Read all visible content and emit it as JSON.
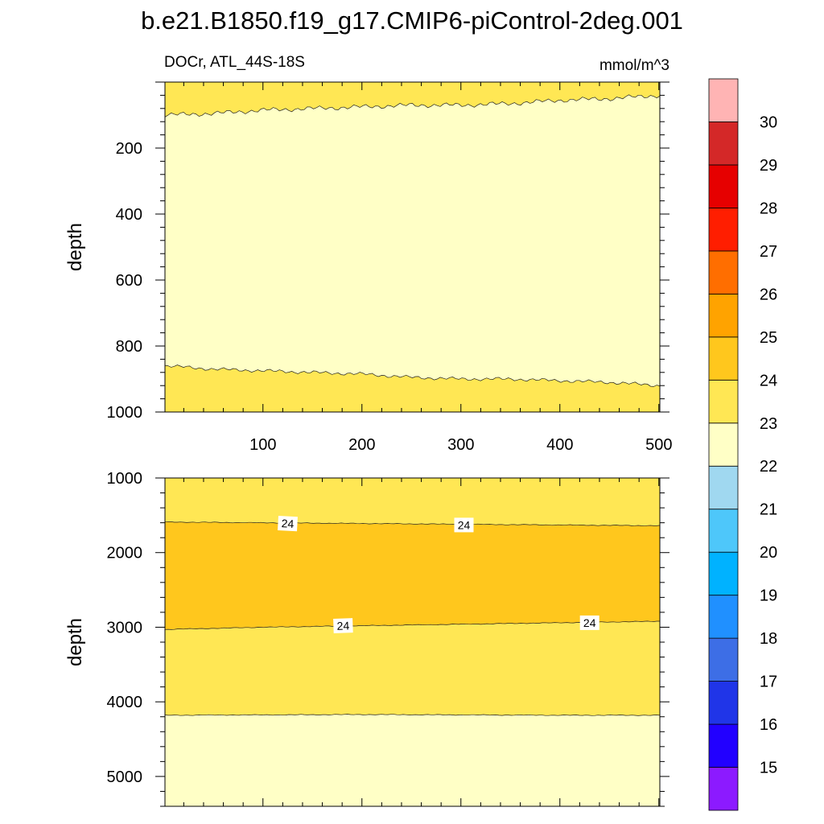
{
  "figure": {
    "title": "b.e21.B1850.f19_g17.CMIP6-piControl-2deg.001",
    "left_string": "DOCr, ATL_44S-18S",
    "right_string": "mmol/m^3"
  },
  "chart_data": [
    {
      "type": "contour",
      "panel": "upper",
      "ylabel": "depth",
      "xlabel": "",
      "xlim": [
        1,
        501
      ],
      "ylim": [
        0,
        1000
      ],
      "y_reversed": true,
      "x_ticks": [
        "100",
        "200",
        "300",
        "400",
        "500"
      ],
      "y_ticks": [
        "200",
        "400",
        "600",
        "800",
        "1000"
      ],
      "bands": [
        {
          "range": "23-24",
          "color": "#ffe754",
          "from_depth": 0,
          "to_depth": "upper contour"
        },
        {
          "range": "22-23",
          "color": "#ffffc6",
          "from_depth": "upper contour",
          "to_depth": "lower contour"
        },
        {
          "range": "23-24",
          "color": "#ffe754",
          "from_depth": "lower contour",
          "to_depth": 1000
        }
      ],
      "contours": [
        {
          "level": 23,
          "x": [
            1,
            50,
            100,
            150,
            200,
            250,
            300,
            350,
            400,
            450,
            501
          ],
          "depth": [
            100,
            95,
            85,
            80,
            75,
            70,
            70,
            65,
            55,
            50,
            40
          ]
        },
        {
          "level": 23,
          "x": [
            1,
            50,
            100,
            150,
            200,
            250,
            300,
            350,
            400,
            450,
            501
          ],
          "depth": [
            860,
            870,
            875,
            880,
            885,
            895,
            900,
            900,
            905,
            910,
            920
          ]
        }
      ]
    },
    {
      "type": "contour",
      "panel": "lower",
      "ylabel": "depth",
      "xlabel": "",
      "xlim": [
        1,
        501
      ],
      "ylim": [
        1000,
        5400
      ],
      "y_reversed": true,
      "y_ticks": [
        "1000",
        "2000",
        "3000",
        "4000",
        "5000"
      ],
      "bands": [
        {
          "range": "23-24",
          "color": "#ffe754"
        },
        {
          "range": "24-25",
          "color": "#ffc71d"
        },
        {
          "range": "23-24",
          "color": "#ffe754"
        },
        {
          "range": "22-23",
          "color": "#ffffc6"
        }
      ],
      "contours": [
        {
          "level": 24,
          "x": [
            1,
            100,
            200,
            300,
            400,
            501
          ],
          "depth": [
            1590,
            1600,
            1610,
            1620,
            1630,
            1640
          ]
        },
        {
          "level": 24,
          "x": [
            1,
            100,
            200,
            300,
            400,
            501
          ],
          "depth": [
            3030,
            3000,
            2980,
            2960,
            2940,
            2920
          ]
        },
        {
          "level": 23,
          "x": [
            1,
            100,
            200,
            300,
            400,
            501
          ],
          "depth": [
            4180,
            4175,
            4170,
            4175,
            4180,
            4180
          ]
        }
      ],
      "contour_labels": [
        {
          "text": "24",
          "x": 125,
          "depth": 1610,
          "angle": 3
        },
        {
          "text": "24",
          "x": 303,
          "depth": 1630,
          "angle": 0
        },
        {
          "text": "24",
          "x": 181,
          "depth": 2980,
          "angle": -2
        },
        {
          "text": "24",
          "x": 430,
          "depth": 2940,
          "angle": 0
        }
      ]
    },
    {
      "type": "colorbar",
      "labels": [
        "15",
        "16",
        "17",
        "18",
        "19",
        "20",
        "21",
        "22",
        "23",
        "24",
        "25",
        "26",
        "27",
        "28",
        "29",
        "30"
      ],
      "colors": [
        "#8c1aff",
        "#2200ff",
        "#2035e8",
        "#3d6ee6",
        "#2090ff",
        "#00b2ff",
        "#4ec7fa",
        "#a0d8f0",
        "#ffffc6",
        "#ffe754",
        "#ffc71d",
        "#ffa300",
        "#ff6e00",
        "#ff1e00",
        "#e60000",
        "#d42828",
        "#ffb4b4"
      ]
    }
  ]
}
